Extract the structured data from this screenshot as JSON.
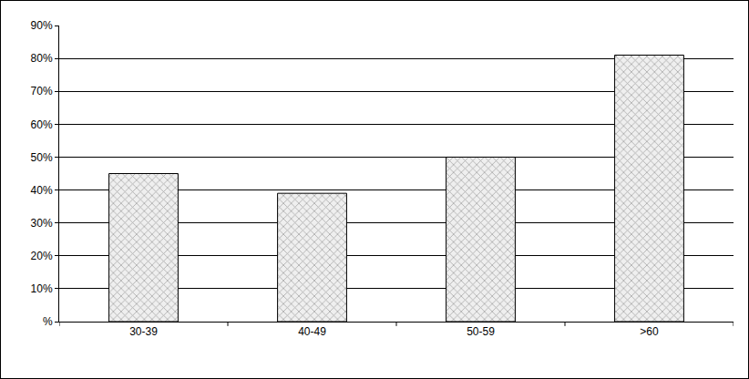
{
  "chart_data": {
    "type": "bar",
    "categories": [
      "30-39",
      "40-49",
      "50-59",
      ">60"
    ],
    "values": [
      45,
      39,
      50,
      81
    ],
    "color": "#a8a8a8",
    "ylim": [
      0,
      90
    ],
    "yticks": [
      {
        "value": 0,
        "label": "%"
      },
      {
        "value": 10,
        "label": "10%"
      },
      {
        "value": 20,
        "label": "20%"
      },
      {
        "value": 30,
        "label": "30%"
      },
      {
        "value": 40,
        "label": "40%"
      },
      {
        "value": 50,
        "label": "50%"
      },
      {
        "value": 60,
        "label": "60%"
      },
      {
        "value": 70,
        "label": "70%"
      },
      {
        "value": 80,
        "label": "80%"
      },
      {
        "value": 90,
        "label": "90%"
      }
    ],
    "grid": true
  }
}
